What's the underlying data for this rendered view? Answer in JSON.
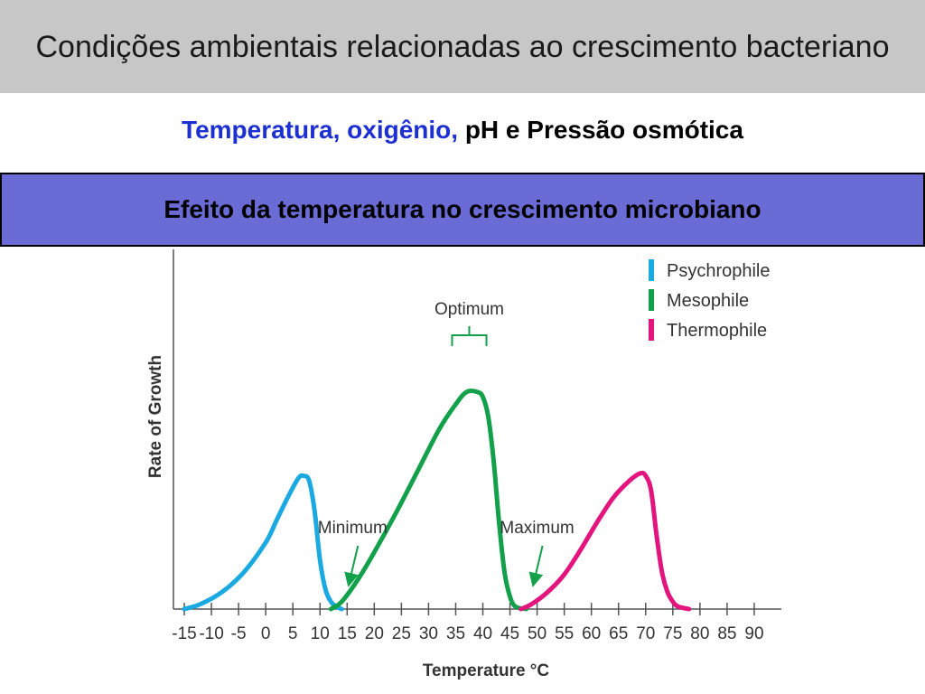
{
  "slide": {
    "title": "Condições  ambientais relacionadas ao crescimento bacteriano",
    "subtitle_highlight": "Temperatura, oxigênio,",
    "subtitle_rest": " pH e Pressão osmótica",
    "banner": "Efeito da temperatura no crescimento microbiano"
  },
  "colors": {
    "title_bar": "#c7c7c7",
    "subtitle_highlight": "#1c2fd0",
    "banner": "#6b6bd6",
    "psychrophile": "#1ba9e1",
    "mesophile": "#13a04a",
    "thermophile": "#e3147e"
  },
  "chart_data": {
    "type": "line",
    "title": "",
    "xlabel": "Temperature °C",
    "ylabel": "Rate of Growth",
    "xlim": [
      -17,
      95
    ],
    "ylim": [
      0,
      1
    ],
    "x_ticks": [
      -15,
      -10,
      -5,
      0,
      5,
      10,
      15,
      20,
      25,
      30,
      35,
      40,
      45,
      50,
      55,
      60,
      65,
      70,
      75,
      80,
      85,
      90
    ],
    "grid": false,
    "legend_position": "top-right",
    "series": [
      {
        "name": "Psychrophile",
        "color": "#1ba9e1",
        "points": [
          [
            -15,
            0
          ],
          [
            -12,
            0.02
          ],
          [
            -8,
            0.07
          ],
          [
            -4,
            0.15
          ],
          [
            0,
            0.27
          ],
          [
            2,
            0.36
          ],
          [
            4,
            0.45
          ],
          [
            6,
            0.53
          ],
          [
            7,
            0.54
          ],
          [
            8,
            0.52
          ],
          [
            9,
            0.4
          ],
          [
            10,
            0.2
          ],
          [
            11,
            0.08
          ],
          [
            12,
            0.03
          ],
          [
            13,
            0.01
          ],
          [
            14,
            0
          ]
        ]
      },
      {
        "name": "Mesophile",
        "color": "#13a04a",
        "points": [
          [
            12,
            0
          ],
          [
            14,
            0.03
          ],
          [
            17,
            0.12
          ],
          [
            20,
            0.23
          ],
          [
            24,
            0.39
          ],
          [
            28,
            0.56
          ],
          [
            32,
            0.73
          ],
          [
            35,
            0.83
          ],
          [
            37,
            0.88
          ],
          [
            39,
            0.88
          ],
          [
            40,
            0.86
          ],
          [
            41,
            0.78
          ],
          [
            42,
            0.6
          ],
          [
            43,
            0.35
          ],
          [
            44,
            0.15
          ],
          [
            45,
            0.05
          ],
          [
            46,
            0.01
          ],
          [
            48,
            0
          ]
        ]
      },
      {
        "name": "Thermophile",
        "color": "#e3147e",
        "points": [
          [
            47,
            0
          ],
          [
            49,
            0.02
          ],
          [
            52,
            0.07
          ],
          [
            55,
            0.14
          ],
          [
            58,
            0.24
          ],
          [
            61,
            0.35
          ],
          [
            64,
            0.45
          ],
          [
            67,
            0.52
          ],
          [
            69,
            0.55
          ],
          [
            70,
            0.54
          ],
          [
            71,
            0.48
          ],
          [
            72,
            0.3
          ],
          [
            73,
            0.15
          ],
          [
            74,
            0.07
          ],
          [
            75,
            0.03
          ],
          [
            76,
            0.01
          ],
          [
            78,
            0
          ]
        ]
      }
    ],
    "annotations": [
      {
        "label": "Optimum",
        "x_range": [
          34,
          41
        ]
      },
      {
        "label": "Minimum",
        "x": 15
      },
      {
        "label": "Maximum",
        "x": 49
      }
    ]
  }
}
